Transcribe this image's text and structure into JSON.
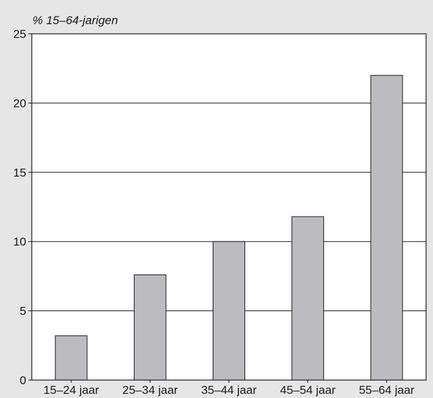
{
  "chart_data": {
    "type": "bar",
    "ylabel": "% 15–64-jarigen",
    "categories": [
      "15–24 jaar",
      "25–34 jaar",
      "35–44 jaar",
      "45–54 jaar",
      "55–64 jaar"
    ],
    "values": [
      3.2,
      7.6,
      10.0,
      11.8,
      22.0
    ],
    "ylim": [
      0,
      25
    ],
    "yticks": [
      "0",
      "5",
      "10",
      "15",
      "20",
      "25"
    ],
    "grid": true,
    "colors": {
      "background": "#e6e6e6",
      "plot": "#ffffff",
      "bar": "#bcbcc0",
      "bar_stroke": "#1a1a1a",
      "grid": "#1a1a1a"
    }
  }
}
